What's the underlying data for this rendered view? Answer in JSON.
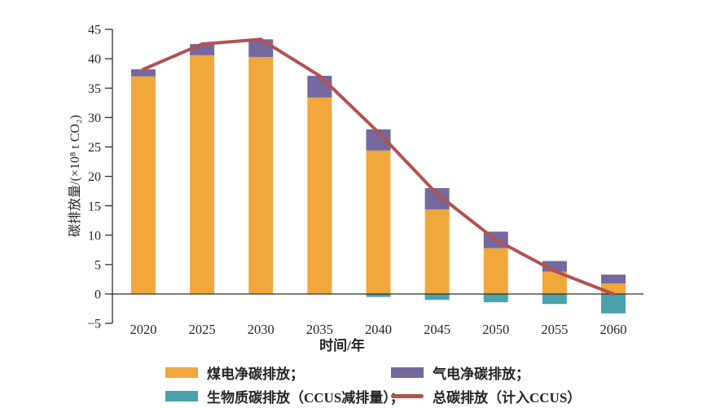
{
  "chart_data": {
    "type": "bar",
    "subtype": "stacked-bars-with-line-overlay",
    "categories": [
      2020,
      2025,
      2030,
      2035,
      2040,
      2045,
      2050,
      2055,
      2060
    ],
    "series": [
      {
        "id": "coal",
        "name": "煤电净碳排放",
        "render": "bar",
        "color": "#F0A73B",
        "values": [
          37.0,
          40.6,
          40.3,
          33.4,
          24.4,
          14.4,
          7.8,
          3.8,
          1.8
        ]
      },
      {
        "id": "gas",
        "name": "气电净碳排放",
        "render": "bar",
        "color": "#75689F",
        "values": [
          1.2,
          1.9,
          3.0,
          3.7,
          3.6,
          3.6,
          2.8,
          1.8,
          1.5
        ]
      },
      {
        "id": "biomass",
        "name": "生物质碳排放（CCUS减排量）",
        "render": "bar",
        "color": "#49A2AC",
        "values": [
          0,
          0,
          0,
          0,
          -0.5,
          -1.0,
          -1.4,
          -1.7,
          -3.3
        ]
      },
      {
        "id": "total",
        "name": "总碳排放（计入CCUS）",
        "render": "line",
        "color": "#B25252",
        "values": [
          38.2,
          42.5,
          43.3,
          37.1,
          27.5,
          17.0,
          9.2,
          3.9,
          0.0
        ]
      }
    ],
    "xlabel": "时间/年",
    "ylabel": "碳排放量/(×10⁸ t CO₂)",
    "ylim": [
      -5,
      45
    ],
    "ytick_step": 5,
    "grid": false,
    "legend_position": "bottom",
    "axis_color": "#2e2e2e"
  },
  "legend": {
    "items": [
      {
        "id": "coal",
        "label": "煤电净碳排放；",
        "color": "#F0A73B",
        "swatch": "rect"
      },
      {
        "id": "gas",
        "label": "气电净碳排放；",
        "color": "#75689F",
        "swatch": "rect"
      },
      {
        "id": "biomass",
        "label": "生物质碳排放（CCUS减排量）；",
        "color": "#49A2AC",
        "swatch": "rect"
      },
      {
        "id": "total",
        "label": "总碳排放（计入CCUS）",
        "color": "#B25252",
        "swatch": "line"
      }
    ]
  }
}
